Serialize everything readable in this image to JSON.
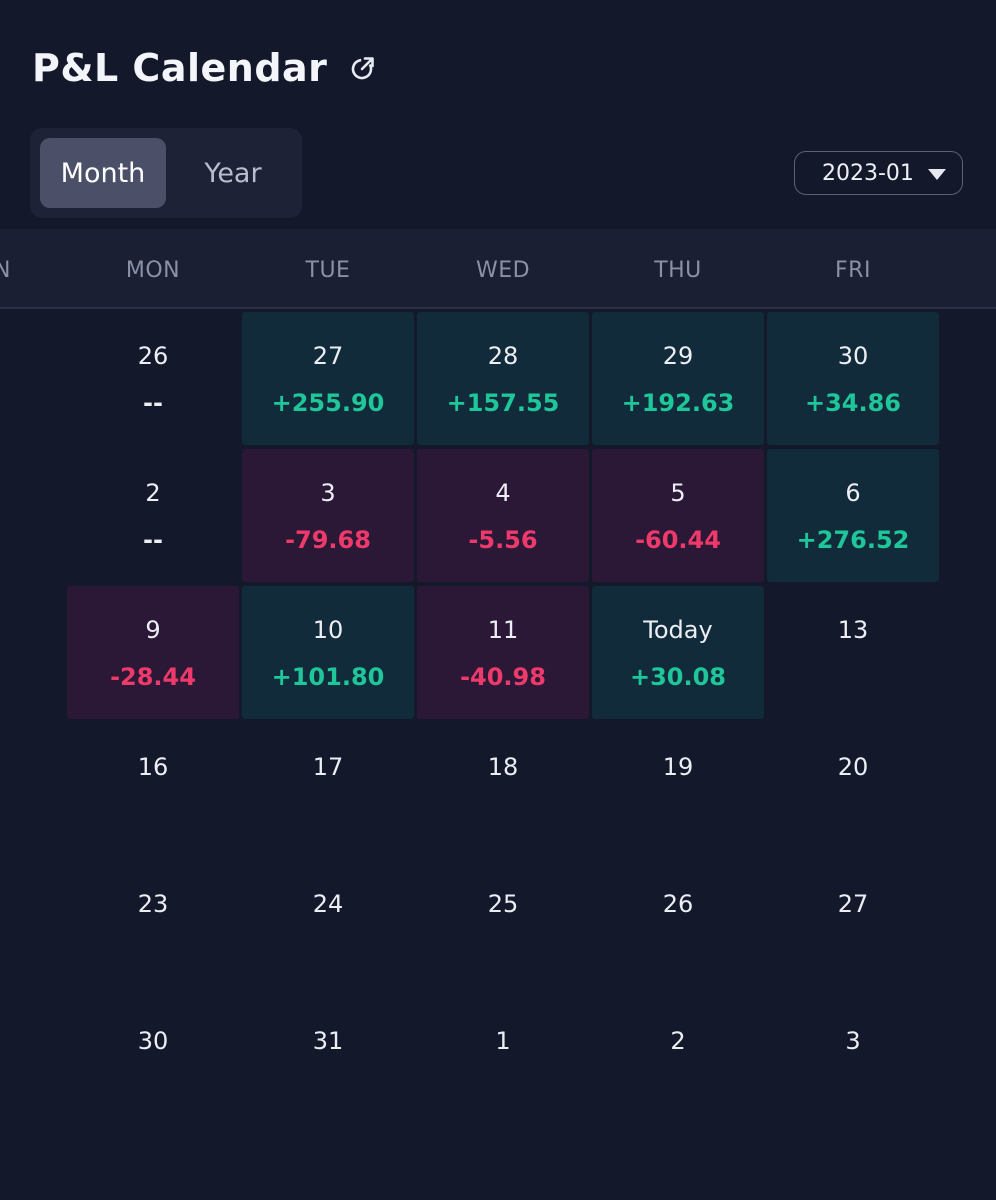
{
  "header": {
    "title": "P&L Calendar"
  },
  "view_toggle": {
    "month_label": "Month",
    "year_label": "Year",
    "selected": "Month"
  },
  "month_picker": {
    "value": "2023-01"
  },
  "weekdays": {
    "edge": "N",
    "mon": "MON",
    "tue": "TUE",
    "wed": "WED",
    "thu": "THU",
    "fri": "FRI"
  },
  "colors": {
    "positive": "#1fc69a",
    "negative": "#ee3a6a",
    "positive_bg": "#112b3a",
    "negative_bg": "#2a1836"
  },
  "weeks": [
    [
      {
        "date": "26",
        "pnl": "--",
        "state": "none"
      },
      {
        "date": "27",
        "pnl": "+255.90",
        "state": "pos"
      },
      {
        "date": "28",
        "pnl": "+157.55",
        "state": "pos"
      },
      {
        "date": "29",
        "pnl": "+192.63",
        "state": "pos"
      },
      {
        "date": "30",
        "pnl": "+34.86",
        "state": "pos"
      }
    ],
    [
      {
        "date": "2",
        "pnl": "--",
        "state": "none"
      },
      {
        "date": "3",
        "pnl": "-79.68",
        "state": "neg"
      },
      {
        "date": "4",
        "pnl": "-5.56",
        "state": "neg"
      },
      {
        "date": "5",
        "pnl": "-60.44",
        "state": "neg"
      },
      {
        "date": "6",
        "pnl": "+276.52",
        "state": "pos"
      }
    ],
    [
      {
        "date": "9",
        "pnl": "-28.44",
        "state": "neg"
      },
      {
        "date": "10",
        "pnl": "+101.80",
        "state": "pos"
      },
      {
        "date": "11",
        "pnl": "-40.98",
        "state": "neg"
      },
      {
        "date": "Today",
        "pnl": "+30.08",
        "state": "pos"
      },
      {
        "date": "13",
        "pnl": "",
        "state": "empty"
      }
    ],
    [
      {
        "date": "16",
        "pnl": "",
        "state": "empty"
      },
      {
        "date": "17",
        "pnl": "",
        "state": "empty"
      },
      {
        "date": "18",
        "pnl": "",
        "state": "empty"
      },
      {
        "date": "19",
        "pnl": "",
        "state": "empty"
      },
      {
        "date": "20",
        "pnl": "",
        "state": "empty"
      }
    ],
    [
      {
        "date": "23",
        "pnl": "",
        "state": "empty"
      },
      {
        "date": "24",
        "pnl": "",
        "state": "empty"
      },
      {
        "date": "25",
        "pnl": "",
        "state": "empty"
      },
      {
        "date": "26",
        "pnl": "",
        "state": "empty"
      },
      {
        "date": "27",
        "pnl": "",
        "state": "empty"
      }
    ],
    [
      {
        "date": "30",
        "pnl": "",
        "state": "empty"
      },
      {
        "date": "31",
        "pnl": "",
        "state": "empty"
      },
      {
        "date": "1",
        "pnl": "",
        "state": "empty"
      },
      {
        "date": "2",
        "pnl": "",
        "state": "empty"
      },
      {
        "date": "3",
        "pnl": "",
        "state": "empty"
      }
    ]
  ]
}
